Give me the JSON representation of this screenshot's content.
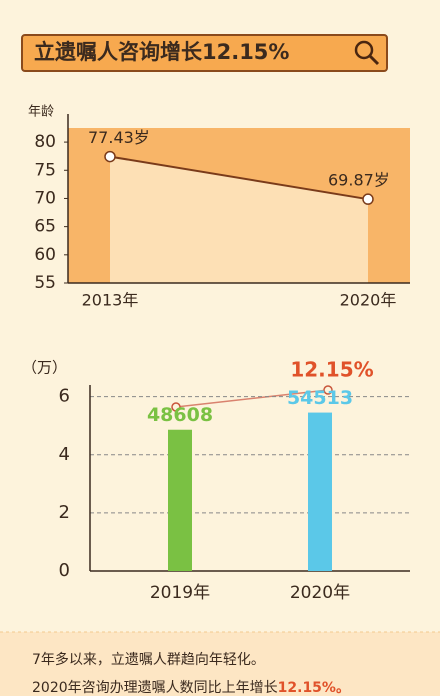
{
  "header": {
    "title": "立遗嘱人咨询增长12.15%"
  },
  "chart_data": [
    {
      "type": "line",
      "ylabel": "年龄",
      "categories": [
        "2013年",
        "2020年"
      ],
      "values": [
        77.43,
        69.87
      ],
      "value_labels": [
        "77.43岁",
        "69.87岁"
      ],
      "color": "#7a3b1a",
      "ylim": [
        55,
        82.5
      ],
      "yticks": [
        55,
        60,
        65,
        70,
        75,
        80
      ]
    },
    {
      "type": "bar",
      "ylabel": "（万）",
      "categories": [
        "2019年",
        "2020年"
      ],
      "values": [
        4.8608,
        5.4513
      ],
      "value_labels": [
        "48608",
        "54513"
      ],
      "colors": [
        "#7ac143",
        "#5bc8e8"
      ],
      "annotation": "12.15%",
      "ylim": [
        0,
        6.4
      ],
      "yticks": [
        0,
        2,
        4,
        6
      ],
      "grid": true
    }
  ],
  "footer": {
    "line1": "7年多以来，立遗嘱人群趋向年轻化。",
    "line2": "2020年咨询办理遗嘱人数同比上年增长",
    "highlight": "12.15%。"
  }
}
